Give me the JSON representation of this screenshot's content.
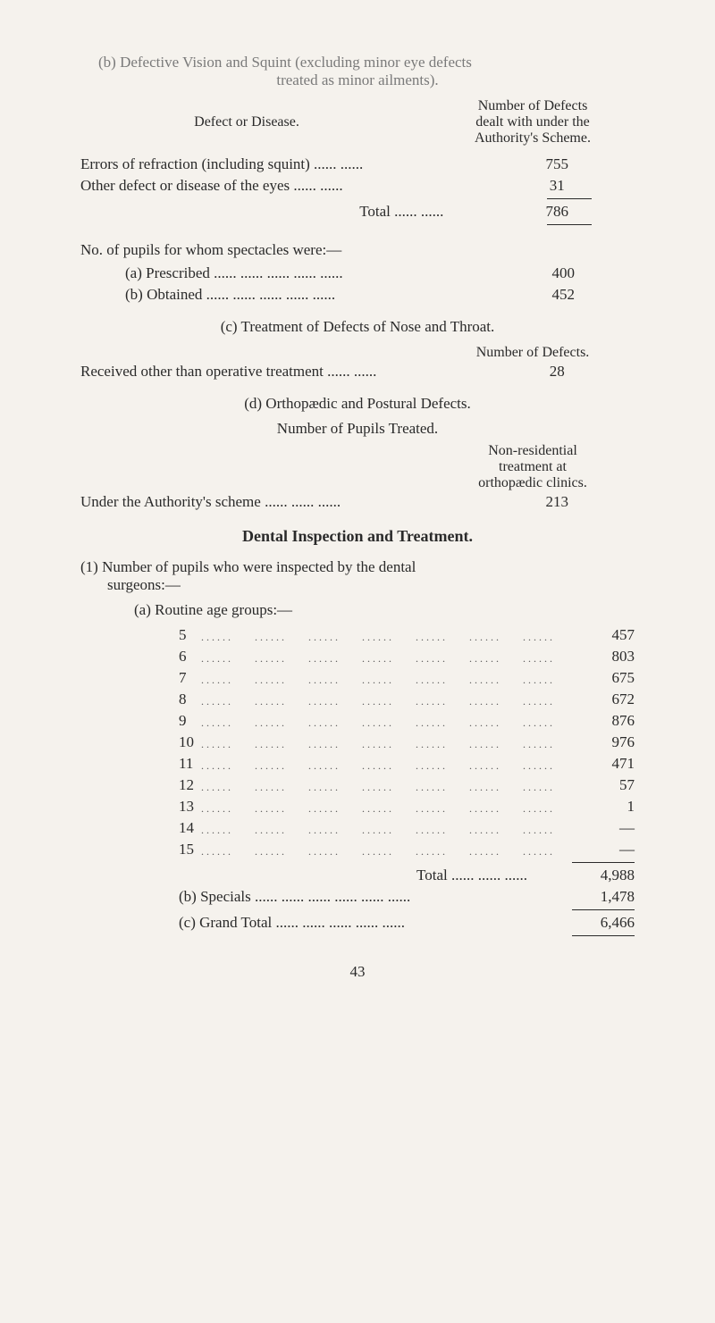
{
  "sections": {
    "b": {
      "heading_line1": "(b) Defective Vision and Squint (excluding minor eye defects",
      "heading_line2": "treated as minor ailments).",
      "col_left": "Defect or Disease.",
      "col_right_l1": "Number of Defects",
      "col_right_l2": "dealt with under the",
      "col_right_l3": "Authority's Scheme.",
      "rows": [
        {
          "label": "Errors of refraction (including squint)  ......  ......",
          "value": "755"
        },
        {
          "label": "Other defect or disease of the eyes  ......  ......",
          "value": "31"
        }
      ],
      "total_label": "Total  ......  ......",
      "total_value": "786",
      "spectacles_heading": "No. of pupils for whom spectacles were:—",
      "specs": [
        {
          "label": "(a) Prescribed  ......  ......  ......  ......  ......",
          "value": "400"
        },
        {
          "label": "(b) Obtained  ......  ......  ......  ......  ......",
          "value": "452"
        }
      ]
    },
    "c": {
      "heading": "(c) Treatment of Defects of Nose and Throat.",
      "col_right": "Number of Defects.",
      "row_label": "Received other than operative treatment ......  ......",
      "row_value": "28"
    },
    "d": {
      "heading": "(d) Orthopædic and Postural Defects.",
      "subheading": "Number of Pupils Treated.",
      "col_right_l1": "Non-residential",
      "col_right_l2": "treatment at",
      "col_right_l3": "orthopædic clinics.",
      "row_label": "Under the Authority's scheme  ......  ......  ......",
      "row_value": "213"
    },
    "dental": {
      "heading": "Dental Inspection and Treatment.",
      "item1_l1": "(1) Number of pupils who were inspected by the dental",
      "item1_l2": "surgeons:—",
      "sub_a": "(a) Routine age groups:—",
      "ages": [
        {
          "age": "5",
          "count": "457"
        },
        {
          "age": "6",
          "count": "803"
        },
        {
          "age": "7",
          "count": "675"
        },
        {
          "age": "8",
          "count": "672"
        },
        {
          "age": "9",
          "count": "876"
        },
        {
          "age": "10",
          "count": "976"
        },
        {
          "age": "11",
          "count": "471"
        },
        {
          "age": "12",
          "count": "57"
        },
        {
          "age": "13",
          "count": "1"
        },
        {
          "age": "14",
          "count": "—"
        },
        {
          "age": "15",
          "count": "—"
        }
      ],
      "total_label": "Total  ......  ......  ......",
      "total_value": "4,988",
      "specials_label": "(b) Specials  ......  ......  ......  ......  ......  ......",
      "specials_value": "1,478",
      "grand_label": "(c) Grand Total  ......  ......  ......  ......  ......",
      "grand_value": "6,466"
    }
  },
  "page_number": "43"
}
